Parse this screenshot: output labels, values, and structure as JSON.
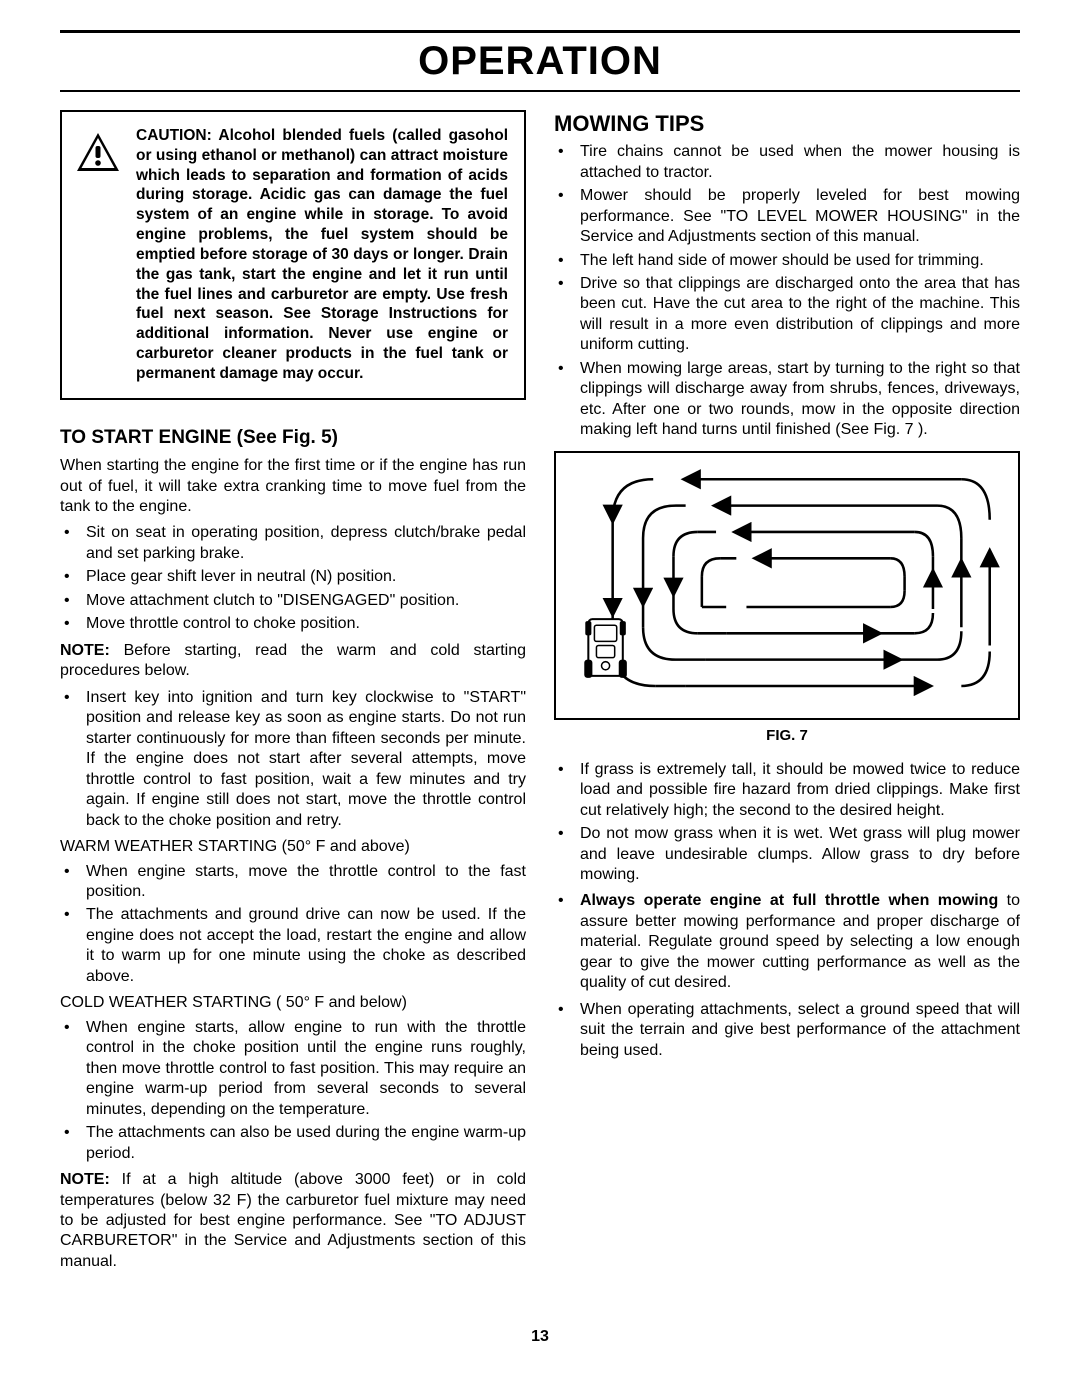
{
  "page": {
    "title": "OPERATION",
    "number": "13"
  },
  "caution": {
    "label": "CAUTION:",
    "text": " Alcohol blended fuels (called gasohol or using ethanol or methanol) can attract moisture which leads to sepa­ration and formation of acids during storage.  Acidic gas can damage the fuel system of an engine while in storage.  To avoid engine problems, the fuel system should be emptied before storage of 30 days or longer.  Drain the gas tank, start the engine and let it run until the fuel lines and carburetor are empty.  Use fresh fuel next season.  See Storage Instructions for additional information. Never use engine or carburetor cleaner products in the fuel tank or permanent damage may occur."
  },
  "startEngine": {
    "heading": "TO START ENGINE (See Fig. 5)",
    "intro": "When starting the engine for the first time or if the engine has run out of fuel, it will take extra cranking time to move fuel from the tank to the engine.",
    "prep": [
      "Sit on seat in operating position, depress clutch/brake pedal and set parking brake.",
      "Place gear shift lever in neutral (N) position.",
      "Move attachment clutch to \"DISENGAGED\" position.",
      "Move throttle control to choke position."
    ],
    "note1_label": "NOTE:",
    "note1": "  Before starting, read the warm and cold starting procedures below.",
    "insert": [
      "Insert key into ignition and turn key clockwise to \"START\" position and release key as soon as engine starts. Do not run starter continuously for more than fifteen seconds per minute. If the engine does not start after several attempts, move throttle control to fast position, wait a few minutes and try again. If engine still does not start, move the throttle control back to the choke position and retry."
    ],
    "warm_heading": "WARM WEATHER STARTING (50° F and above)",
    "warm": [
      "When engine starts, move the throttle control to the fast position.",
      "The attachments and ground drive can now be used. If the engine does not accept the load, restart the engine and allow it to warm up for one minute using the choke as described above."
    ],
    "cold_heading": "COLD WEATHER STARTING ( 50° F and below)",
    "cold": [
      "When engine starts, allow engine to run with the throttle control in the choke position until the engine runs roughly, then move throttle control to fast position. This may require an engine warm-up period from several seconds to several minutes, depending on the tempera­ture.",
      "The attachments can also be used during the engine warm-up period."
    ],
    "note2_label": "NOTE:",
    "note2": "  If at a high altitude (above 3000 feet) or in cold temperatures (below 32 F) the carburetor fuel mixture may need to be adjusted for best engine performance. See \"TO ADJUST CARBURETOR\" in the Service and Adjustments section of this manual."
  },
  "mowingTips": {
    "heading": "MOWING TIPS",
    "tips1": [
      "Tire chains cannot be used when the mower housing is attached to tractor.",
      "Mower should be properly leveled for best mowing performance. See \"TO LEVEL MOWER HOUSING\" in the Service and Adjustments section of this manual.",
      "The left hand side of mower should be used for trimming.",
      "Drive so that clippings are discharged onto the area that has been cut.  Have the cut area to the right of the machine.  This will result in a more even distribution of clippings and more uniform cutting.",
      "When mowing large areas, start by turning to the right so that clippings will discharge away from shrubs, fences, driveways, etc.  After one or two rounds, mow in the opposite direction making left hand turns until finished (See Fig. 7 )."
    ],
    "fig_caption": "FIG. 7",
    "tips2": [
      "If grass is extremely tall, it should be mowed twice to reduce load and possible fire hazard from dried clip­pings.  Make first cut relatively high; the second to the desired height.",
      "Do not mow grass when it is wet.  Wet grass will plug mower and leave undesirable clumps.  Allow grass to dry before mowing."
    ],
    "tip_bold": "Always operate engine at full throttle when mowing",
    "tip_bold_rest": " to assure better mowing performance and proper dis­charge of material.  Regulate ground speed by selecting a low enough gear to give the mower cutting perfor­mance as well as the quality of cut desired.",
    "tips3": [
      "When operating attachments, select a ground speed that will suit the terrain and give best performance of the attachment being used."
    ]
  },
  "colors": {
    "text": "#000000",
    "bg": "#ffffff"
  }
}
